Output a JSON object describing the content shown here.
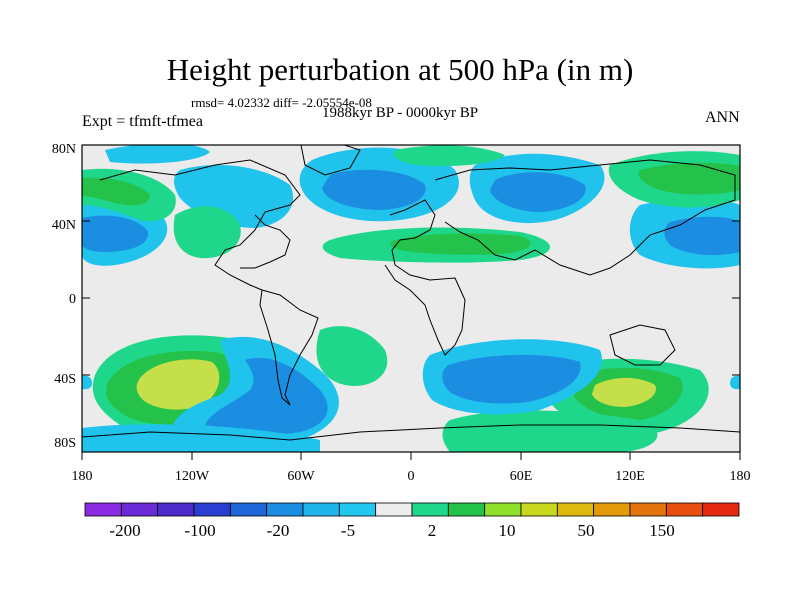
{
  "figure": {
    "title": "Height perturbation at 500 hPa (in m)",
    "stats": "rmsd= 4.02332 diff= -2.05554e-08",
    "period": "1988kyr BP - 0000kyr BP",
    "experiment": "Expt = tfmft-tfmea",
    "season": "ANN"
  },
  "axes": {
    "lat_ticks": [
      "80N",
      "40N",
      "0",
      "40S",
      "80S"
    ],
    "lon_ticks": [
      "180",
      "120W",
      "60W",
      "0",
      "60E",
      "120E",
      "180"
    ]
  },
  "colorbar": {
    "labels": [
      "-200",
      "-100",
      "-20",
      "-5",
      "2",
      "10",
      "50",
      "150"
    ],
    "colors": [
      "#8b2be2",
      "#6a2ad6",
      "#4b2ccb",
      "#2a3fd1",
      "#1f66d9",
      "#1b8ee2",
      "#1fb4e8",
      "#22c7ee",
      "#ececec",
      "#1fd78a",
      "#24c24a",
      "#8ee02a",
      "#c8d81f",
      "#ddb90f",
      "#e39b0c",
      "#e4740e",
      "#e64f0f",
      "#e52a13"
    ]
  },
  "palette": {
    "background": "#ebebeb",
    "neutral": "#ebebeb",
    "light_blue": "#20c3ec",
    "mid_blue": "#1b8ee2",
    "dark_blue": "#1f66d9",
    "teal_green": "#1fd78a",
    "green": "#24c24a",
    "yellow_green": "#c4df4a"
  }
}
